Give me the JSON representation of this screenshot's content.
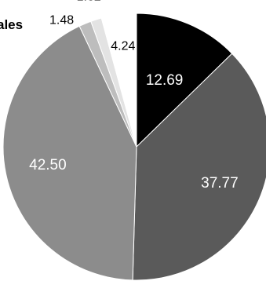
{
  "title": "ales",
  "chart_data": {
    "type": "pie",
    "title": "ales",
    "start_angle_deg": 0,
    "direction": "clockwise",
    "slices": [
      {
        "label": "12.69",
        "value": 12.69,
        "color": "#000000",
        "text_color": "#ffffff"
      },
      {
        "label": "37.77",
        "value": 37.77,
        "color": "#5a5a5a",
        "text_color": "#ffffff"
      },
      {
        "label": "42.50",
        "value": 42.5,
        "color": "#8c8c8c",
        "text_color": "#ffffff"
      },
      {
        "label": "1.48",
        "value": 1.48,
        "color": "#bdbdbd",
        "text_color": "#000000"
      },
      {
        "label": "1.32",
        "value": 1.32,
        "color": "#e3e3e3",
        "text_color": "#000000"
      },
      {
        "label": "4.24",
        "value": 4.24,
        "color": "#ffffff",
        "text_color": "#000000"
      }
    ]
  }
}
